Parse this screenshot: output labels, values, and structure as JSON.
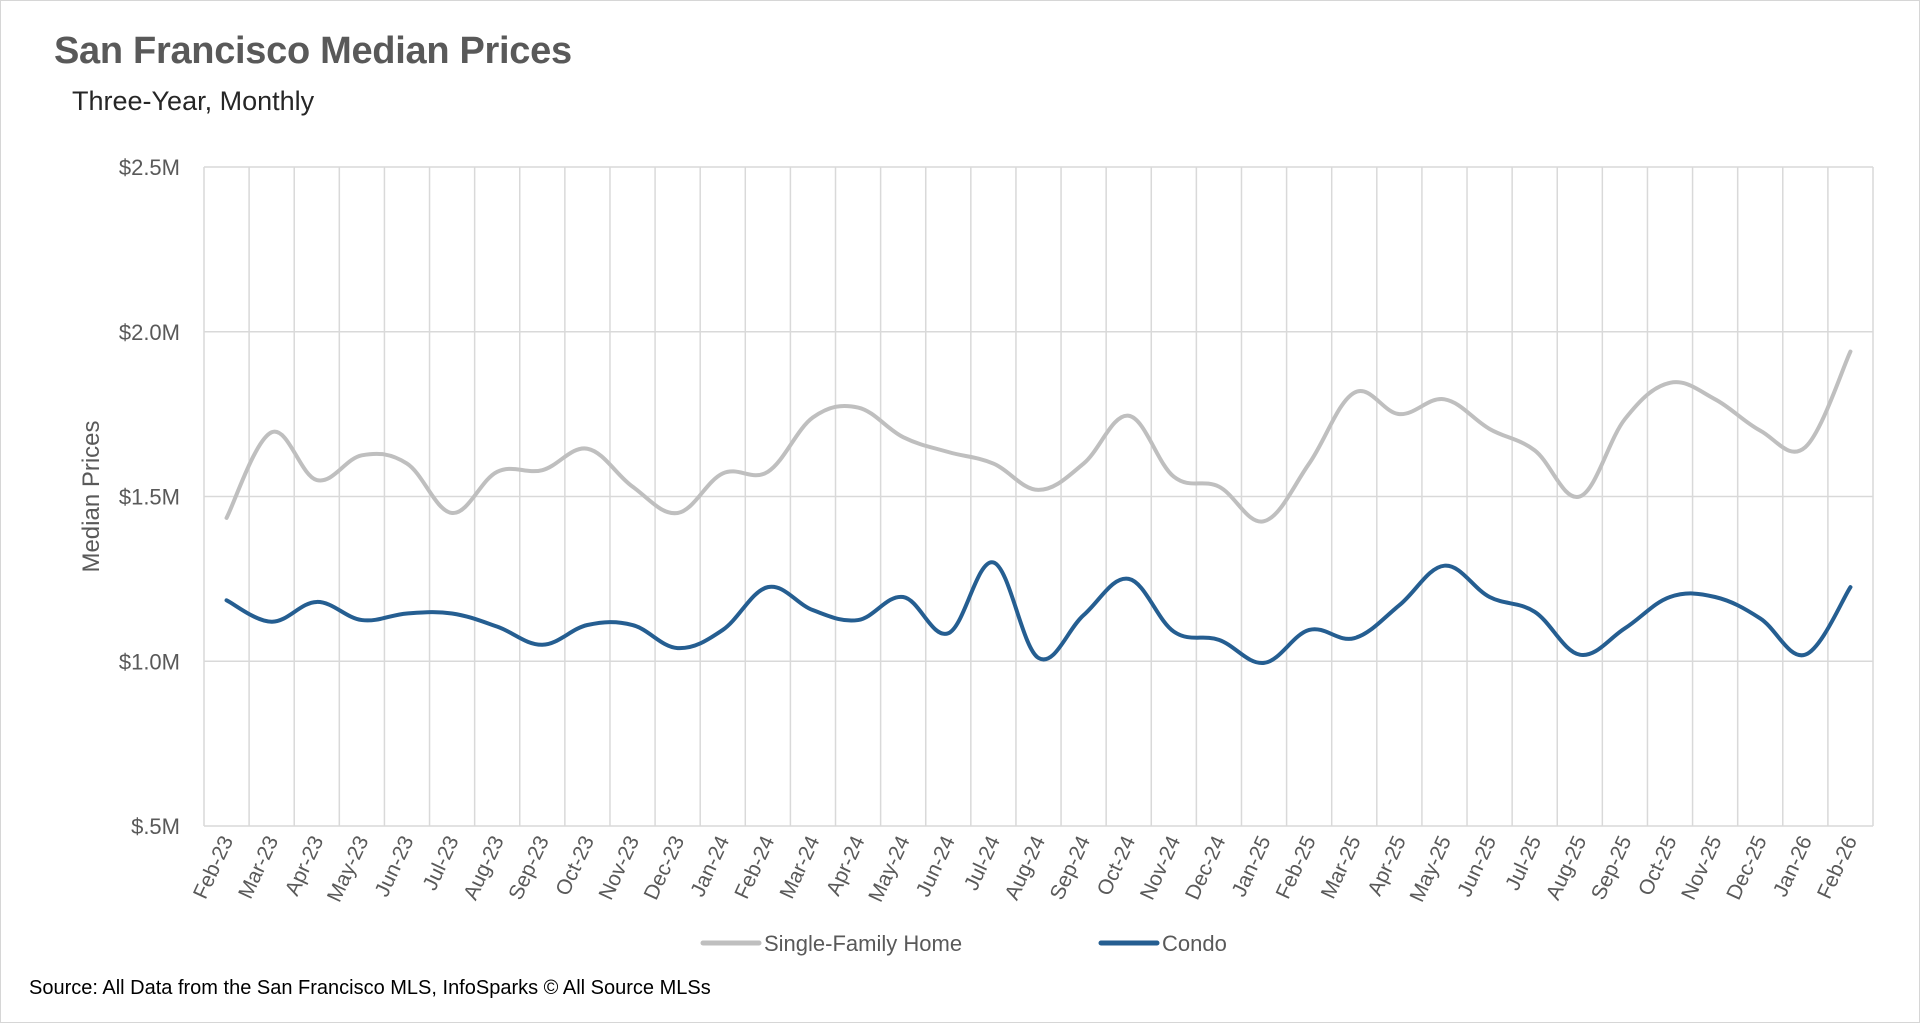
{
  "page": {
    "source": "Source: All Data from the San Francisco MLS, InfoSparks © All Source MLSs"
  },
  "chart_data": {
    "type": "line",
    "title": "San Francisco Median Prices",
    "subtitle": "Three-Year, Monthly",
    "xlabel": "",
    "ylabel": "Median Prices",
    "ylim": [
      500000,
      2500000
    ],
    "yticks": [
      500000,
      1000000,
      1500000,
      2000000,
      2500000
    ],
    "ytick_labels": [
      "$.5M",
      "$1.0M",
      "$1.5M",
      "$2.0M",
      "$2.5M"
    ],
    "grid": true,
    "legend_position": "bottom",
    "categories": [
      "Feb-23",
      "Mar-23",
      "Apr-23",
      "May-23",
      "Jun-23",
      "Jul-23",
      "Aug-23",
      "Sep-23",
      "Oct-23",
      "Nov-23",
      "Dec-23",
      "Jan-24",
      "Feb-24",
      "Mar-24",
      "Apr-24",
      "May-24",
      "Jun-24",
      "Jul-24",
      "Aug-24",
      "Sep-24",
      "Oct-24",
      "Nov-24",
      "Dec-24",
      "Jan-25",
      "Feb-25",
      "Mar-25",
      "Apr-25",
      "May-25",
      "Jun-25",
      "Jul-25",
      "Aug-25",
      "Sep-25",
      "Oct-25",
      "Nov-25",
      "Dec-25",
      "Jan-26",
      "Feb-26"
    ],
    "series": [
      {
        "name": "Single-Family Home",
        "color": "#bfbfbf",
        "values": [
          1435000,
          1695000,
          1550000,
          1625000,
          1600000,
          1450000,
          1575000,
          1580000,
          1645000,
          1530000,
          1450000,
          1570000,
          1575000,
          1740000,
          1770000,
          1680000,
          1635000,
          1600000,
          1520000,
          1600000,
          1745000,
          1560000,
          1530000,
          1425000,
          1600000,
          1815000,
          1750000,
          1795000,
          1705000,
          1640000,
          1500000,
          1735000,
          1845000,
          1795000,
          1700000,
          1650000,
          1940000
        ]
      },
      {
        "name": "Condo",
        "color": "#255e91",
        "values": [
          1185000,
          1120000,
          1180000,
          1125000,
          1145000,
          1145000,
          1105000,
          1050000,
          1110000,
          1110000,
          1040000,
          1095000,
          1225000,
          1155000,
          1125000,
          1195000,
          1085000,
          1300000,
          1010000,
          1140000,
          1250000,
          1090000,
          1065000,
          995000,
          1095000,
          1070000,
          1170000,
          1290000,
          1195000,
          1150000,
          1020000,
          1100000,
          1195000,
          1195000,
          1130000,
          1020000,
          1225000
        ]
      }
    ]
  }
}
